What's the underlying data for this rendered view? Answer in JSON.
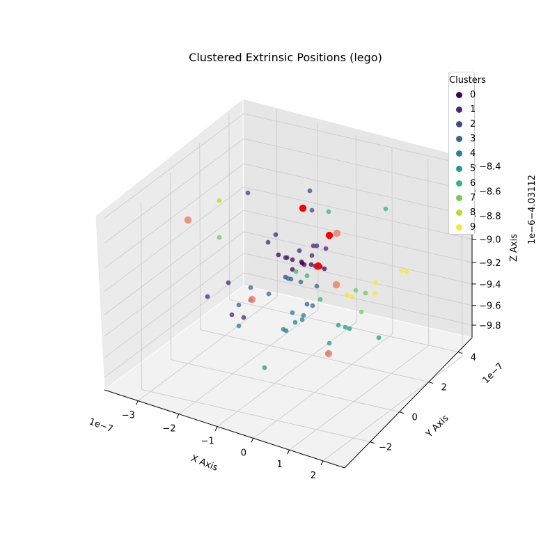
{
  "chart_data": {
    "type": "scatter",
    "title": "Clustered Extrinsic Positions (lego)",
    "xlabel": "X Axis",
    "ylabel": "Y Axis",
    "zlabel": "Z Axis",
    "x_offset_label": "1e−7",
    "y_offset_label": "1e−7",
    "z_offset_label": "1e−6−4.03112",
    "x_ticks": [
      "−3",
      "−2",
      "−1",
      "0",
      "1",
      "2"
    ],
    "y_ticks": [
      "−2",
      "0",
      "2",
      "4"
    ],
    "z_ticks": [
      "−9.8",
      "−9.6",
      "−9.4",
      "−9.2",
      "−9.0",
      "−8.8",
      "−8.6",
      "−8.4"
    ],
    "grid": true,
    "legend": {
      "title": "Clusters",
      "placement": "top-right",
      "labels": [
        "0",
        "1",
        "2",
        "3",
        "4",
        "5",
        "6",
        "7",
        "8",
        "9"
      ]
    },
    "cluster_colors": [
      "#440154",
      "#482878",
      "#3e4989",
      "#31688e",
      "#26828e",
      "#1f9e89",
      "#35b779",
      "#6ece58",
      "#b5de2b",
      "#fde725"
    ],
    "highlight_colors": {
      "solid": "#ff0000",
      "faded": "#f08070"
    },
    "points_screen_projection": [
      [
        0,
        434,
        378
      ],
      [
        0,
        420,
        373
      ],
      [
        0,
        447,
        380
      ],
      [
        0,
        466,
        386
      ],
      [
        0,
        453,
        382
      ],
      [
        0,
        437,
        380
      ],
      [
        0,
        460,
        383
      ],
      [
        0,
        433,
        376
      ],
      [
        0,
        420,
        387
      ],
      [
        0,
        412,
        370
      ],
      [
        0,
        400,
        366
      ],
      [
        1,
        396,
        337
      ],
      [
        1,
        385,
        348
      ],
      [
        1,
        410,
        370
      ],
      [
        1,
        430,
        360
      ],
      [
        1,
        450,
        353
      ],
      [
        1,
        448,
        367
      ],
      [
        1,
        468,
        357
      ],
      [
        1,
        455,
        353
      ],
      [
        1,
        328,
        406
      ],
      [
        1,
        298,
        426
      ],
      [
        1,
        333,
        452
      ],
      [
        1,
        350,
        456
      ],
      [
        1,
        360,
        431
      ],
      [
        2,
        356,
        277
      ],
      [
        2,
        445,
        274
      ],
      [
        2,
        448,
        302
      ],
      [
        2,
        455,
        384
      ],
      [
        2,
        410,
        398
      ],
      [
        3,
        418,
        401
      ],
      [
        3,
        432,
        405
      ],
      [
        3,
        414,
        400
      ],
      [
        3,
        455,
        411
      ],
      [
        3,
        386,
        422
      ],
      [
        3,
        360,
        413
      ],
      [
        3,
        343,
        438
      ],
      [
        3,
        441,
        437
      ],
      [
        3,
        449,
        439
      ],
      [
        4,
        420,
        449
      ],
      [
        4,
        436,
        453
      ],
      [
        4,
        424,
        463
      ],
      [
        4,
        434,
        459
      ],
      [
        4,
        407,
        473
      ],
      [
        4,
        411,
        475
      ],
      [
        4,
        343,
        468
      ],
      [
        5,
        380,
        528
      ],
      [
        5,
        473,
        493
      ],
      [
        5,
        486,
        467
      ],
      [
        5,
        496,
        470
      ],
      [
        5,
        502,
        472
      ],
      [
        5,
        544,
        485
      ],
      [
        5,
        471,
        507
      ],
      [
        6,
        472,
        304
      ],
      [
        6,
        554,
        300
      ],
      [
        6,
        425,
        390
      ],
      [
        6,
        441,
        396
      ],
      [
        6,
        460,
        430
      ],
      [
        7,
        511,
        417
      ],
      [
        7,
        525,
        421
      ],
      [
        7,
        519,
        448
      ],
      [
        7,
        315,
        341
      ],
      [
        8,
        315,
        288
      ],
      [
        9,
        577,
        389
      ],
      [
        9,
        584,
        390
      ],
      [
        9,
        540,
        406
      ],
      [
        9,
        498,
        424
      ],
      [
        9,
        505,
        426
      ],
      [
        9,
        538,
        421
      ],
      [
        9,
        485,
        407
      ]
    ],
    "highlight_points_screen_projection": [
      [
        435,
        299,
        "solid"
      ],
      [
        473,
        338,
        "solid"
      ],
      [
        457,
        382,
        "solid"
      ],
      [
        484,
        335,
        "faded"
      ],
      [
        270,
        316,
        "faded"
      ],
      [
        483,
        409,
        "faded"
      ],
      [
        362,
        430,
        "faded"
      ],
      [
        472,
        508,
        "faded"
      ]
    ]
  }
}
